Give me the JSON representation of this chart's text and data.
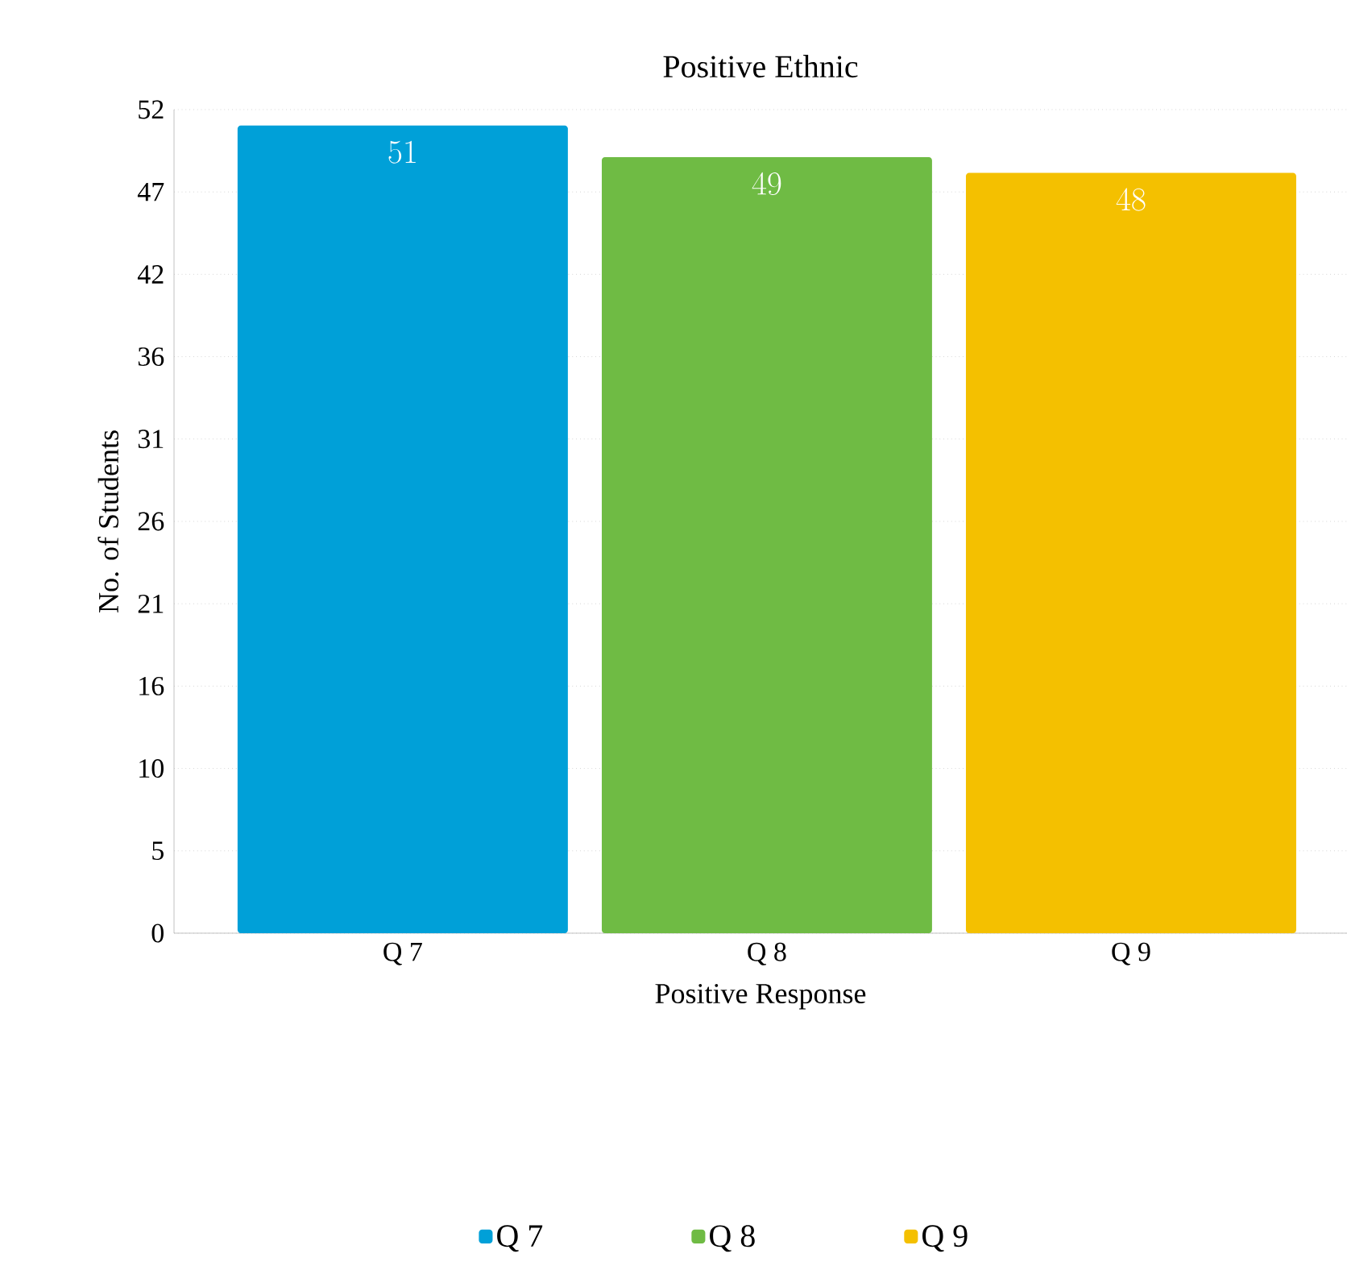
{
  "chart_data": {
    "type": "bar",
    "title": "Positive Ethnic",
    "xlabel": "Positive Response",
    "ylabel": "No. of Students",
    "categories": [
      "Q 7",
      "Q 8",
      "Q 9"
    ],
    "series": [
      {
        "name": "Q 7",
        "color": "#00a0d8",
        "values": [
          51,
          null,
          null
        ]
      },
      {
        "name": "Q 8",
        "color": "#6fbb44",
        "values": [
          null,
          49,
          null
        ]
      },
      {
        "name": "Q 9",
        "color": "#f4c000",
        "values": [
          null,
          null,
          48
        ]
      }
    ],
    "ylim": [
      0,
      52
    ],
    "yticks": [
      0,
      {
        "value": 5.2,
        "label": "5"
      },
      {
        "value": 10.4,
        "label": "10"
      },
      {
        "value": 15.6,
        "label": "16"
      },
      {
        "value": 20.8,
        "label": "21"
      },
      26,
      {
        "value": 31.2,
        "label": "31"
      },
      {
        "value": 36.4,
        "label": "36"
      },
      {
        "value": 41.6,
        "label": "42"
      },
      {
        "value": 46.8,
        "label": "47"
      },
      52
    ],
    "grid": "y",
    "legend": "bottom",
    "data_labels": true
  }
}
